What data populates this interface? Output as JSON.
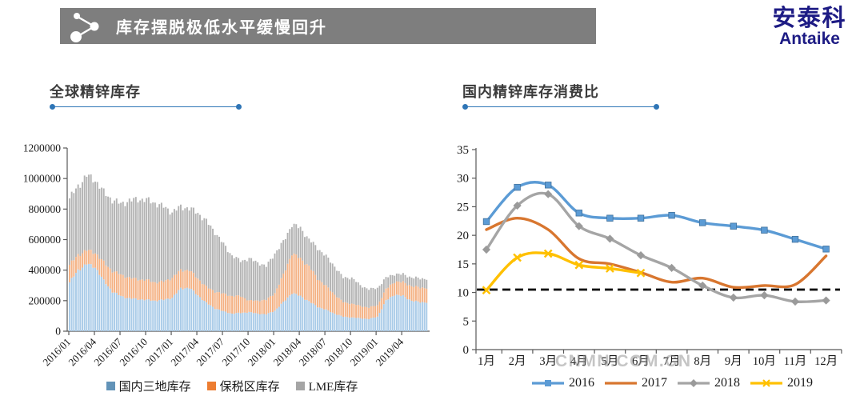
{
  "header": {
    "bar_text": "库存摆脱极低水平缓慢回升",
    "bar_color": "#7e7e7e",
    "logo_line1": "安泰科",
    "logo_line2": "Antaike",
    "logo_color": "#1d1b84"
  },
  "watermark": "CNMN.COM.CN",
  "accent_line_color": "#2e75b6",
  "chart_data": [
    {
      "type": "bar",
      "stacked": true,
      "title": "全球精锌库存",
      "categories": [
        "2016/01",
        "2016/02",
        "2016/03",
        "2016/04",
        "2016/05",
        "2016/06",
        "2016/07",
        "2016/08",
        "2016/09",
        "2016/10",
        "2016/11",
        "2016/12",
        "2017/01",
        "2017/02",
        "2017/03",
        "2017/04",
        "2017/05",
        "2017/06",
        "2017/07",
        "2017/08",
        "2017/09",
        "2017/10",
        "2017/11",
        "2017/12",
        "2018/01",
        "2018/02",
        "2018/03",
        "2018/04",
        "2018/05",
        "2018/06",
        "2018/07",
        "2018/08",
        "2018/09",
        "2018/10",
        "2018/11",
        "2018/12",
        "2019/01",
        "2019/02",
        "2019/03",
        "2019/04",
        "2019/05",
        "2019/06"
      ],
      "xticks": [
        "2016/01",
        "2016/04",
        "2016/07",
        "2016/10",
        "2017/01",
        "2017/04",
        "2017/07",
        "2017/10",
        "2018/01",
        "2018/04",
        "2018/07",
        "2018/10",
        "2019/01",
        "2019/04"
      ],
      "yticks": [
        0,
        200000,
        400000,
        600000,
        800000,
        1000000,
        1200000
      ],
      "ylim": [
        0,
        1200000
      ],
      "series": [
        {
          "name": "国内三地库存",
          "color": "#a9cbe8",
          "legend_color": "#6293b8",
          "values": [
            320000,
            400000,
            440000,
            420000,
            330000,
            260000,
            230000,
            215000,
            210000,
            205000,
            200000,
            205000,
            220000,
            280000,
            285000,
            235000,
            185000,
            150000,
            130000,
            115000,
            120000,
            125000,
            115000,
            110000,
            135000,
            190000,
            250000,
            230000,
            195000,
            160000,
            140000,
            115000,
            95000,
            90000,
            85000,
            80000,
            95000,
            200000,
            240000,
            230000,
            200000,
            190000
          ]
        },
        {
          "name": "保税区库存",
          "color": "#f4b183",
          "legend_color": "#ed7d31",
          "values": [
            115000,
            100000,
            90000,
            95000,
            120000,
            135000,
            140000,
            135000,
            130000,
            130000,
            120000,
            120000,
            130000,
            120000,
            115000,
            110000,
            105000,
            110000,
            115000,
            115000,
            110000,
            75000,
            85000,
            95000,
            115000,
            180000,
            260000,
            245000,
            230000,
            185000,
            155000,
            125000,
            95000,
            90000,
            80000,
            75000,
            75000,
            75000,
            85000,
            90000,
            95000,
            95000
          ]
        },
        {
          "name": "LME库存",
          "color": "#b3b3b3",
          "legend_color": "#a5a5a5",
          "values": [
            435000,
            450000,
            490000,
            475000,
            460000,
            465000,
            465000,
            505000,
            525000,
            525000,
            520000,
            490000,
            430000,
            415000,
            405000,
            430000,
            430000,
            390000,
            325000,
            265000,
            230000,
            275000,
            250000,
            220000,
            260000,
            215000,
            190000,
            200000,
            175000,
            200000,
            195000,
            185000,
            160000,
            170000,
            135000,
            120000,
            113000,
            75000,
            50000,
            52000,
            57000,
            60000
          ]
        }
      ]
    },
    {
      "type": "line",
      "title": "国内精锌库存消费比",
      "categories": [
        "1月",
        "2月",
        "3月",
        "4月",
        "5月",
        "6月",
        "7月",
        "8月",
        "9月",
        "10月",
        "11月",
        "12月"
      ],
      "yticks": [
        0,
        5,
        10,
        15,
        20,
        25,
        30,
        35
      ],
      "ylim": [
        0,
        35
      ],
      "reference_line": 10.5,
      "reference_line_color": "#000000",
      "series": [
        {
          "name": "2016",
          "color": "#5b9bd5",
          "marker": "square",
          "values": [
            22.4,
            28.4,
            28.8,
            23.9,
            23.0,
            23.0,
            23.5,
            22.2,
            21.6,
            20.9,
            19.3,
            17.6
          ]
        },
        {
          "name": "2017",
          "color": "#d8762f",
          "marker": "none",
          "values": [
            21.0,
            23.0,
            21.0,
            15.9,
            15.0,
            13.5,
            11.8,
            12.5,
            10.9,
            11.2,
            11.4,
            16.4
          ]
        },
        {
          "name": "2018",
          "color": "#a5a5a5",
          "marker": "diamond",
          "values": [
            17.5,
            25.2,
            27.2,
            21.6,
            19.4,
            16.5,
            14.3,
            11.2,
            9.1,
            9.5,
            8.4,
            8.6
          ]
        },
        {
          "name": "2019",
          "color": "#ffc000",
          "marker": "x",
          "values": [
            10.4,
            16.1,
            16.8,
            14.8,
            14.2,
            13.4
          ]
        }
      ]
    }
  ]
}
